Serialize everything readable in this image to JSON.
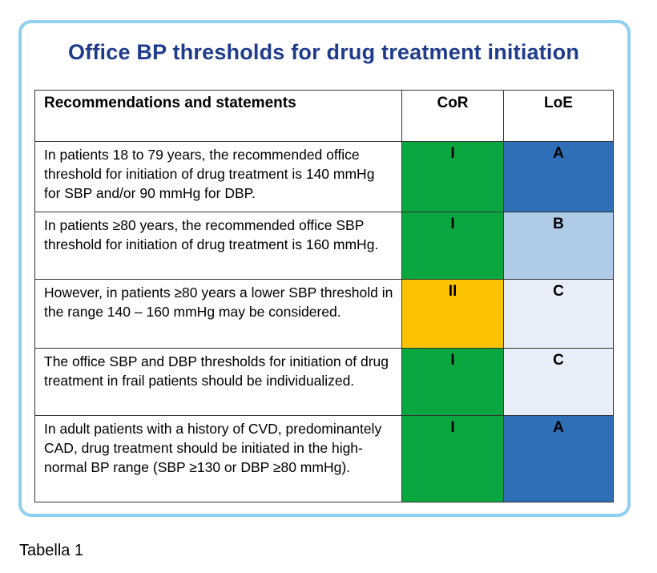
{
  "title": "Office BP thresholds for drug treatment initiation",
  "table": {
    "headers": {
      "recommendation": "Recommendations and statements",
      "cor": "CoR",
      "loe": "LoE"
    },
    "rows": [
      {
        "statement": "In patients 18 to 79 years, the recommended office threshold for initiation of drug treatment is 140 mmHg for SBP and/or 90 mmHg for DBP.",
        "cor": "I",
        "loe": "A"
      },
      {
        "statement": "In patients ≥80 years, the recommended office SBP threshold for initiation of drug treatment is 160 mmHg.",
        "cor": "I",
        "loe": "B"
      },
      {
        "statement": "However, in patients ≥80 years a lower SBP threshold in the range 140 – 160 mmHg may be considered.",
        "cor": "II",
        "loe": "C"
      },
      {
        "statement": "The office SBP and DBP thresholds for initiation of drug treatment in frail patients should be individualized.",
        "cor": "I",
        "loe": "C"
      },
      {
        "statement": "In adult patients with a history of CVD, predominantely CAD, drug treatment should be initiated in the high-normal BP range (SBP ≥130 or DBP ≥80 mmHg).",
        "cor": "I",
        "loe": "A"
      }
    ]
  },
  "colors": {
    "frame_border": "#8fcff0",
    "title": "#1f3c8c",
    "cor_I": "#0aa640",
    "cor_II": "#fbc200",
    "loe_A": "#2e6fb7",
    "loe_B": "#afcbe8",
    "loe_C": "#e7eef9"
  },
  "caption": "Tabella 1"
}
